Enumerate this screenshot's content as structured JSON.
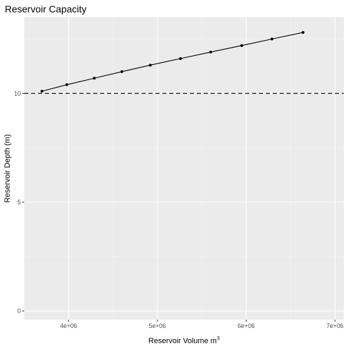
{
  "chart_data": {
    "type": "line",
    "title": "Reservoir Capacity",
    "xlabel": "Reservoir Volume m",
    "xlabel_superscript": "3",
    "ylabel": "Reservoir Depth (m)",
    "x_ticks": [
      {
        "value": 4000000,
        "label": "4e+06"
      },
      {
        "value": 5000000,
        "label": "5e+06"
      },
      {
        "value": 6000000,
        "label": "6e+06"
      },
      {
        "value": 7000000,
        "label": "7e+06"
      }
    ],
    "y_ticks": [
      {
        "value": 0,
        "label": "0"
      },
      {
        "value": 5,
        "label": "5"
      },
      {
        "value": 10,
        "label": "10"
      }
    ],
    "xlim": [
      3500000,
      7100000
    ],
    "ylim": [
      -0.4,
      13.5
    ],
    "grid": true,
    "series": [
      {
        "x": [
          3700000,
          3980000,
          4290000,
          4600000,
          4920000,
          5260000,
          5600000,
          5950000,
          6290000,
          6640000
        ],
        "y": [
          10.1,
          10.4,
          10.7,
          11.0,
          11.3,
          11.6,
          11.9,
          12.2,
          12.5,
          12.8
        ],
        "marker": "point",
        "color": "#000000"
      }
    ],
    "reference_lines": [
      {
        "orientation": "horizontal",
        "y": 10,
        "style": "dashed",
        "color": "#000000"
      }
    ]
  },
  "colors": {
    "panel_background": "#ebebeb",
    "grid_major": "#ffffff",
    "grid_minor": "#f5f5f5",
    "tick_label": "#4d4d4d"
  }
}
